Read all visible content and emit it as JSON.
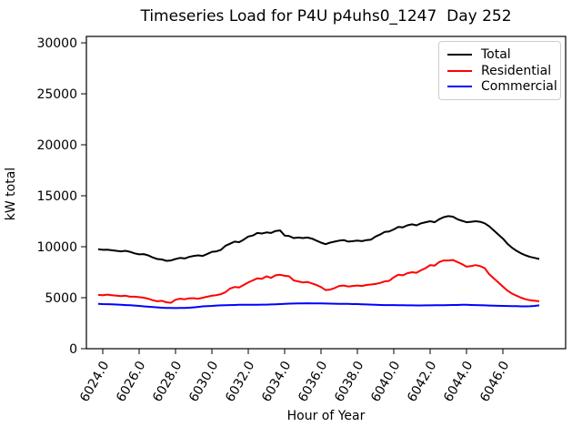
{
  "chart_data": {
    "type": "line",
    "title": "Timeseries Load for P4U p4uhs0_1247  Day 252",
    "xlabel": "Hour of Year",
    "ylabel": "kW total",
    "xlim": [
      6023.1,
      6049.45
    ],
    "ylim": [
      0,
      30630
    ],
    "grid": false,
    "legend_position": "upper right",
    "x_tick_labels": [
      "6024.0",
      "6026.0",
      "6028.0",
      "6030.0",
      "6032.0",
      "6034.0",
      "6036.0",
      "6038.0",
      "6040.0",
      "6042.0",
      "6044.0",
      "6046.0"
    ],
    "y_tick_labels": [
      "0",
      "5000",
      "10000",
      "15000",
      "20000",
      "25000",
      "30000"
    ],
    "x_start": 6023.75,
    "x_step": 0.25,
    "series": [
      {
        "name": "Total",
        "color": "#000000",
        "values": [
          9750,
          9700,
          9720,
          9650,
          9600,
          9550,
          9600,
          9500,
          9350,
          9250,
          9280,
          9150,
          8950,
          8800,
          8750,
          8620,
          8650,
          8800,
          8900,
          8850,
          9000,
          9100,
          9150,
          9100,
          9300,
          9500,
          9550,
          9700,
          10100,
          10300,
          10500,
          10450,
          10700,
          11000,
          11100,
          11350,
          11300,
          11400,
          11350,
          11550,
          11600,
          11100,
          11050,
          10850,
          10900,
          10850,
          10900,
          10800,
          10600,
          10400,
          10250,
          10400,
          10500,
          10600,
          10650,
          10500,
          10550,
          10600,
          10550,
          10650,
          10700,
          11000,
          11200,
          11450,
          11500,
          11700,
          11950,
          11900,
          12100,
          12200,
          12100,
          12300,
          12400,
          12500,
          12400,
          12700,
          12900,
          13000,
          12950,
          12700,
          12550,
          12400,
          12450,
          12500,
          12450,
          12300,
          12000,
          11600,
          11200,
          10800,
          10300,
          9900,
          9600,
          9350,
          9150,
          9000,
          8900,
          8800
        ]
      },
      {
        "name": "Residential",
        "color": "#ff0000",
        "values": [
          5280,
          5250,
          5300,
          5250,
          5200,
          5150,
          5200,
          5100,
          5100,
          5050,
          5000,
          4900,
          4750,
          4650,
          4700,
          4550,
          4500,
          4800,
          4900,
          4850,
          4950,
          4950,
          4900,
          5000,
          5100,
          5200,
          5250,
          5350,
          5550,
          5900,
          6050,
          6000,
          6250,
          6500,
          6700,
          6900,
          6850,
          7100,
          6950,
          7200,
          7250,
          7150,
          7100,
          6700,
          6600,
          6500,
          6550,
          6400,
          6250,
          6050,
          5750,
          5800,
          5950,
          6150,
          6200,
          6100,
          6150,
          6200,
          6150,
          6250,
          6300,
          6350,
          6450,
          6600,
          6650,
          7000,
          7250,
          7200,
          7400,
          7500,
          7450,
          7700,
          7900,
          8200,
          8150,
          8500,
          8650,
          8650,
          8700,
          8500,
          8300,
          8050,
          8100,
          8200,
          8100,
          7900,
          7300,
          6900,
          6500,
          6100,
          5700,
          5400,
          5200,
          5000,
          4850,
          4750,
          4700,
          4650
        ]
      },
      {
        "name": "Commercial",
        "color": "#0000ff",
        "values": [
          4400,
          4380,
          4370,
          4350,
          4330,
          4300,
          4280,
          4260,
          4230,
          4200,
          4150,
          4120,
          4080,
          4050,
          4020,
          4000,
          3990,
          3980,
          3990,
          4000,
          4020,
          4050,
          4100,
          4150,
          4180,
          4200,
          4230,
          4250,
          4270,
          4280,
          4290,
          4300,
          4300,
          4300,
          4310,
          4310,
          4320,
          4320,
          4340,
          4360,
          4380,
          4400,
          4420,
          4430,
          4440,
          4450,
          4460,
          4450,
          4450,
          4440,
          4430,
          4420,
          4410,
          4400,
          4390,
          4390,
          4380,
          4380,
          4360,
          4340,
          4320,
          4300,
          4290,
          4280,
          4280,
          4280,
          4270,
          4260,
          4250,
          4250,
          4240,
          4240,
          4250,
          4250,
          4260,
          4270,
          4270,
          4280,
          4290,
          4290,
          4300,
          4300,
          4290,
          4280,
          4260,
          4250,
          4230,
          4220,
          4210,
          4200,
          4190,
          4180,
          4170,
          4150,
          4150,
          4160,
          4200,
          4250
        ]
      }
    ]
  }
}
